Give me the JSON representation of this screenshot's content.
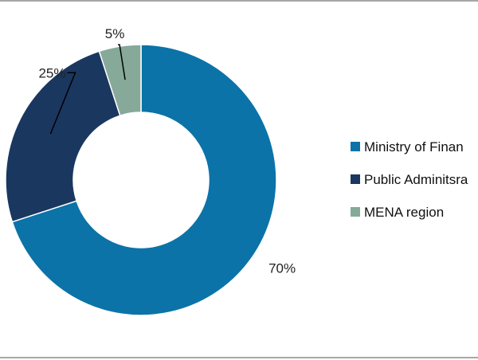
{
  "chart_data": {
    "type": "pie",
    "style": "donut",
    "categories": [
      "Ministry of Finance",
      "Public Adminitsration",
      "MENA region"
    ],
    "values": [
      70,
      25,
      5
    ],
    "value_labels": [
      "70%",
      "25%",
      "5%"
    ],
    "colors": [
      "#0B73A8",
      "#1A3760",
      "#86A999"
    ],
    "legend_labels": [
      "Ministry of Finan",
      "Public Adminitsra",
      "MENA region"
    ],
    "legend_position": "right",
    "title": ""
  }
}
